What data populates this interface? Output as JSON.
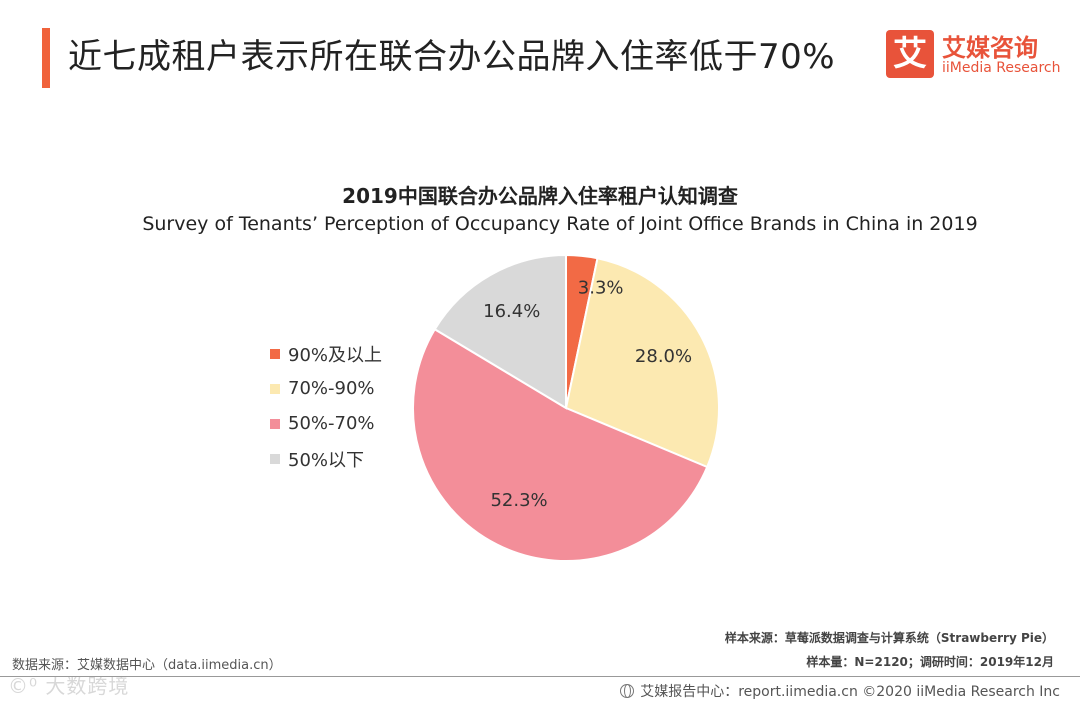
{
  "header": {
    "title": "近七成租户表示所在联合办公品牌入住率低于70%",
    "accent_color": "#f0623b"
  },
  "brand": {
    "box_char": "艾",
    "name_cn": "艾媒咨询",
    "name_en": "iiMedia Research",
    "color": "#e8533a"
  },
  "chart_data": {
    "type": "pie",
    "title": "2019中国联合办公品牌入住率租户认知调查",
    "subtitle": "Survey of Tenants’ Perception of Occupancy Rate of Joint Office Brands in China in 2019",
    "start_angle_deg": 0,
    "direction": "clockwise",
    "legend_position": "left",
    "slices": [
      {
        "label": "90%及以上",
        "value": 3.3,
        "display": "3.3%",
        "color": "#f26a45"
      },
      {
        "label": "70%-90%",
        "value": 28.0,
        "display": "28.0%",
        "color": "#fce9b1"
      },
      {
        "label": "50%-70%",
        "value": 52.3,
        "display": "52.3%",
        "color": "#f38e99"
      },
      {
        "label": "50%以下",
        "value": 16.4,
        "display": "16.4%",
        "color": "#d9d9d9"
      }
    ]
  },
  "footer": {
    "source_left": "数据来源：艾媒数据中心（data.iimedia.cn）",
    "sample_source": "样本来源：草莓派数据调查与计算系统（Strawberry Pie）",
    "sample_info": "样本量：N=2120；调研时间：2019年12月",
    "report_center": "艾媒报告中心：report.iimedia.cn ©2020  iiMedia Research  Inc",
    "watermark": "©⁰ 大数跨境"
  }
}
